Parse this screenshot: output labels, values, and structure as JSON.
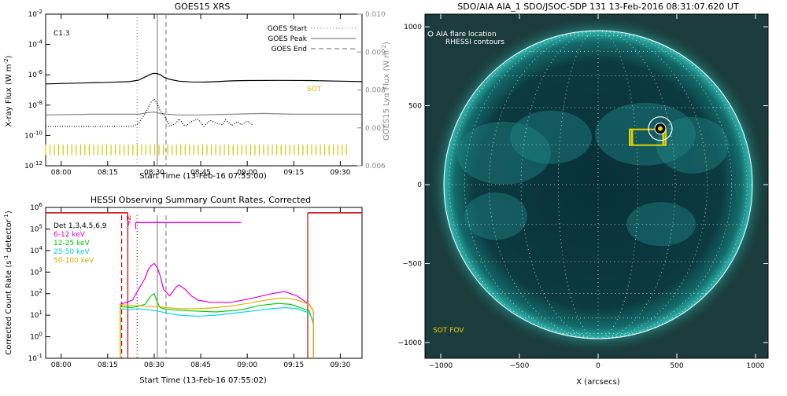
{
  "chart_data": [
    {
      "type": "line",
      "title": "GOES15 XRS",
      "xlabel": "Start Time (13-Feb-16 07:55:00)",
      "ylabel_left": "X-ray Flux (W m^-2)",
      "ylabel_right": "GOES15 Lyα Flux (W m^-2)",
      "x_ticks": [
        "08:00",
        "08:15",
        "08:30",
        "08:45",
        "09:00",
        "09:15",
        "09:30"
      ],
      "x_tick_minutes": [
        0,
        15,
        30,
        45,
        60,
        75,
        90
      ],
      "x_range_minutes": [
        -5,
        97
      ],
      "y_left_ticks": [
        "10^-2",
        "10^-4",
        "10^-6",
        "10^-8",
        "10^-10",
        "10^-12"
      ],
      "y_left_exp": [
        -2,
        -4,
        -6,
        -8,
        -10,
        -12
      ],
      "ylim_left_exp": [
        -12,
        -2
      ],
      "y_right_ticks": [
        "0.010",
        "0.009",
        "0.008",
        "0.007",
        "0.006"
      ],
      "y_right_values": [
        0.01,
        0.009,
        0.008,
        0.007,
        0.006
      ],
      "ylim_right": [
        0.006,
        0.01
      ],
      "flare_class": "C1.3",
      "sot_label": "SOT",
      "legend": [
        {
          "label": "GOES Start",
          "style": "dotted",
          "minute": 24.5
        },
        {
          "label": "GOES Peak",
          "style": "solid",
          "minute": 31
        },
        {
          "label": "GOES End",
          "style": "dashed",
          "minute": 33.8
        }
      ],
      "series": [
        {
          "name": "long",
          "color": "#000000",
          "x": [
            -5,
            5,
            15,
            22,
            25,
            27,
            29,
            30,
            31,
            32,
            33,
            35,
            38,
            42,
            46,
            50,
            55,
            60,
            70,
            80,
            90,
            97
          ],
          "y_exp": [
            -6.6,
            -6.55,
            -6.5,
            -6.45,
            -6.35,
            -6.15,
            -5.95,
            -5.9,
            -5.92,
            -6.0,
            -6.15,
            -6.3,
            -6.42,
            -6.47,
            -6.48,
            -6.45,
            -6.4,
            -6.38,
            -6.37,
            -6.38,
            -6.42,
            -6.45
          ]
        },
        {
          "name": "short",
          "color": "#888888",
          "x": [
            -5,
            10,
            20,
            25,
            28,
            30,
            32,
            34,
            38,
            45,
            55,
            65,
            75,
            85,
            97
          ],
          "y_exp": [
            -8.65,
            -8.6,
            -8.6,
            -8.6,
            -8.5,
            -8.45,
            -8.55,
            -8.6,
            -8.65,
            -8.65,
            -8.6,
            -8.55,
            -8.6,
            -8.6,
            -8.6
          ]
        },
        {
          "name": "Lyα",
          "color": "#000000",
          "style": "dotted",
          "x": [
            -5,
            23,
            25,
            27,
            29,
            30,
            31,
            32,
            33,
            35,
            37,
            38,
            40,
            42,
            44,
            46,
            48,
            50,
            52,
            53,
            55,
            57,
            58,
            60,
            62
          ],
          "y_exp": [
            -9.4,
            -9.4,
            -9.2,
            -8.6,
            -7.8,
            -7.6,
            -7.9,
            -8.4,
            -8.6,
            -9.4,
            -9.2,
            -8.9,
            -9.4,
            -9.1,
            -8.9,
            -9.4,
            -9.0,
            -9.2,
            -9.3,
            -8.95,
            -9.35,
            -9.1,
            -9.3,
            -9.05,
            -9.35
          ]
        }
      ],
      "sot_ticks_range_minutes": [
        -5,
        92
      ],
      "sot_ticks_count": 70
    },
    {
      "type": "line",
      "title": "HESSI Observing Summary Count Rates, Corrected",
      "xlabel": "Start Time (13-Feb-16 07:55:02)",
      "ylabel": "Corrected Count Rate (s^-1 detector^-1)",
      "x_ticks": [
        "08:00",
        "08:15",
        "08:30",
        "08:45",
        "09:00",
        "09:15",
        "09:30"
      ],
      "x_tick_minutes": [
        0,
        15,
        30,
        45,
        60,
        75,
        90
      ],
      "x_range_minutes": [
        -5,
        97
      ],
      "y_ticks": [
        "10^6",
        "10^5",
        "10^4",
        "10^3",
        "10^2",
        "10^1",
        "10^0",
        "10^-1"
      ],
      "y_exp": [
        6,
        5,
        4,
        3,
        2,
        1,
        0,
        -1
      ],
      "ylim_exp": [
        -1,
        6
      ],
      "legend_title": "Det 1,3,4,5,6,9",
      "flag_labels": {
        "n": "N",
        "f": "F"
      },
      "series": [
        {
          "name": "6-12 keV",
          "color": "#e000e0",
          "x": [
            19,
            21,
            23,
            25,
            27,
            28,
            29,
            30,
            31,
            32,
            33,
            35,
            37,
            38,
            40,
            42,
            44,
            48,
            55,
            62,
            68,
            72,
            76,
            78,
            80,
            81.3
          ],
          "y_exp": [
            1.5,
            1.6,
            1.7,
            2.2,
            2.7,
            3.1,
            3.3,
            3.4,
            3.2,
            2.8,
            2.2,
            1.9,
            2.3,
            2.4,
            2.2,
            1.9,
            1.7,
            1.6,
            1.6,
            1.8,
            2.0,
            2.1,
            1.9,
            1.7,
            1.5,
            1.2
          ]
        },
        {
          "name": "12-25 keV",
          "color": "#00d000",
          "x": [
            19,
            23,
            27,
            29,
            30,
            31,
            32,
            33,
            36,
            42,
            50,
            58,
            64,
            70,
            74,
            78,
            80,
            81.3
          ],
          "y_exp": [
            1.4,
            1.35,
            1.5,
            1.9,
            2.0,
            1.6,
            1.35,
            1.3,
            1.25,
            1.2,
            1.15,
            1.25,
            1.45,
            1.55,
            1.5,
            1.3,
            1.2,
            0.6
          ]
        },
        {
          "name": "25-50 keV",
          "color": "#00dede",
          "x": [
            19,
            22,
            25,
            28,
            31,
            34,
            38,
            44,
            50,
            56,
            62,
            68,
            72,
            76,
            80,
            81.3
          ],
          "y_exp": [
            1.3,
            1.25,
            1.3,
            1.25,
            1.2,
            1.1,
            1.0,
            0.95,
            1.0,
            1.1,
            1.2,
            1.3,
            1.35,
            1.3,
            1.1,
            0.7
          ]
        },
        {
          "name": "50-100 keV",
          "color": "#e0b000",
          "x": [
            19,
            22,
            25,
            28,
            31,
            34,
            38,
            44,
            50,
            56,
            62,
            68,
            72,
            76,
            80,
            81.3
          ],
          "y_exp": [
            1.5,
            1.45,
            1.45,
            1.4,
            1.4,
            1.35,
            1.3,
            1.3,
            1.35,
            1.45,
            1.6,
            1.75,
            1.8,
            1.7,
            1.5,
            1.2
          ]
        }
      ],
      "attenuator_segments": [
        {
          "x0": -5,
          "x1": 21.5,
          "y_exp": 5.75,
          "color": "#cc0000"
        },
        {
          "x0": 79.5,
          "x1": 97,
          "y_exp": 5.75,
          "color": "#cc0000"
        }
      ],
      "attenuator_drops": [
        {
          "minute": 21.5,
          "color": "#cc0000"
        },
        {
          "minute": 79.5,
          "color": "#cc0000"
        }
      ],
      "flag_bar": {
        "x0": 24,
        "x1": 58,
        "y_exp": 5.3,
        "color": "#e000e0"
      },
      "vlines": [
        {
          "minute": 19.5,
          "style": "dashed",
          "color": "#cc0000"
        },
        {
          "minute": 24.5,
          "style": "dotted",
          "color": "#cc0000"
        },
        {
          "minute": 31,
          "style": "solid",
          "color": "#888888"
        },
        {
          "minute": 33.8,
          "style": "dashed",
          "color": "#888888"
        }
      ]
    },
    {
      "type": "image",
      "title": "SDO/AIA AIA_1 SDO/JSOC-SDP 131 13-Feb-2016 08:31:07.620 UT",
      "xlabel": "X (arcsecs)",
      "x_ticks": [
        -1000,
        -500,
        0,
        500,
        1000
      ],
      "y_ticks": [
        1000,
        500,
        0,
        -500,
        -1000
      ],
      "xlim": [
        -1100,
        1080
      ],
      "ylim": [
        -1100,
        1080
      ],
      "legend": [
        "AIA flare location",
        "RHESSI contours"
      ],
      "fov_label": "SOT FOV",
      "disk_radius_arcsec": 980,
      "flare_location": [
        395,
        355
      ],
      "sot_fov": {
        "x0": 200,
        "x1": 430,
        "y0": 250,
        "y1": 350
      },
      "colors": {
        "background": "#1b3b3c",
        "disk": "#0b2f33",
        "limb": "#23a7a0",
        "grid": "#ffffff",
        "fov": "#e0d000"
      }
    }
  ]
}
